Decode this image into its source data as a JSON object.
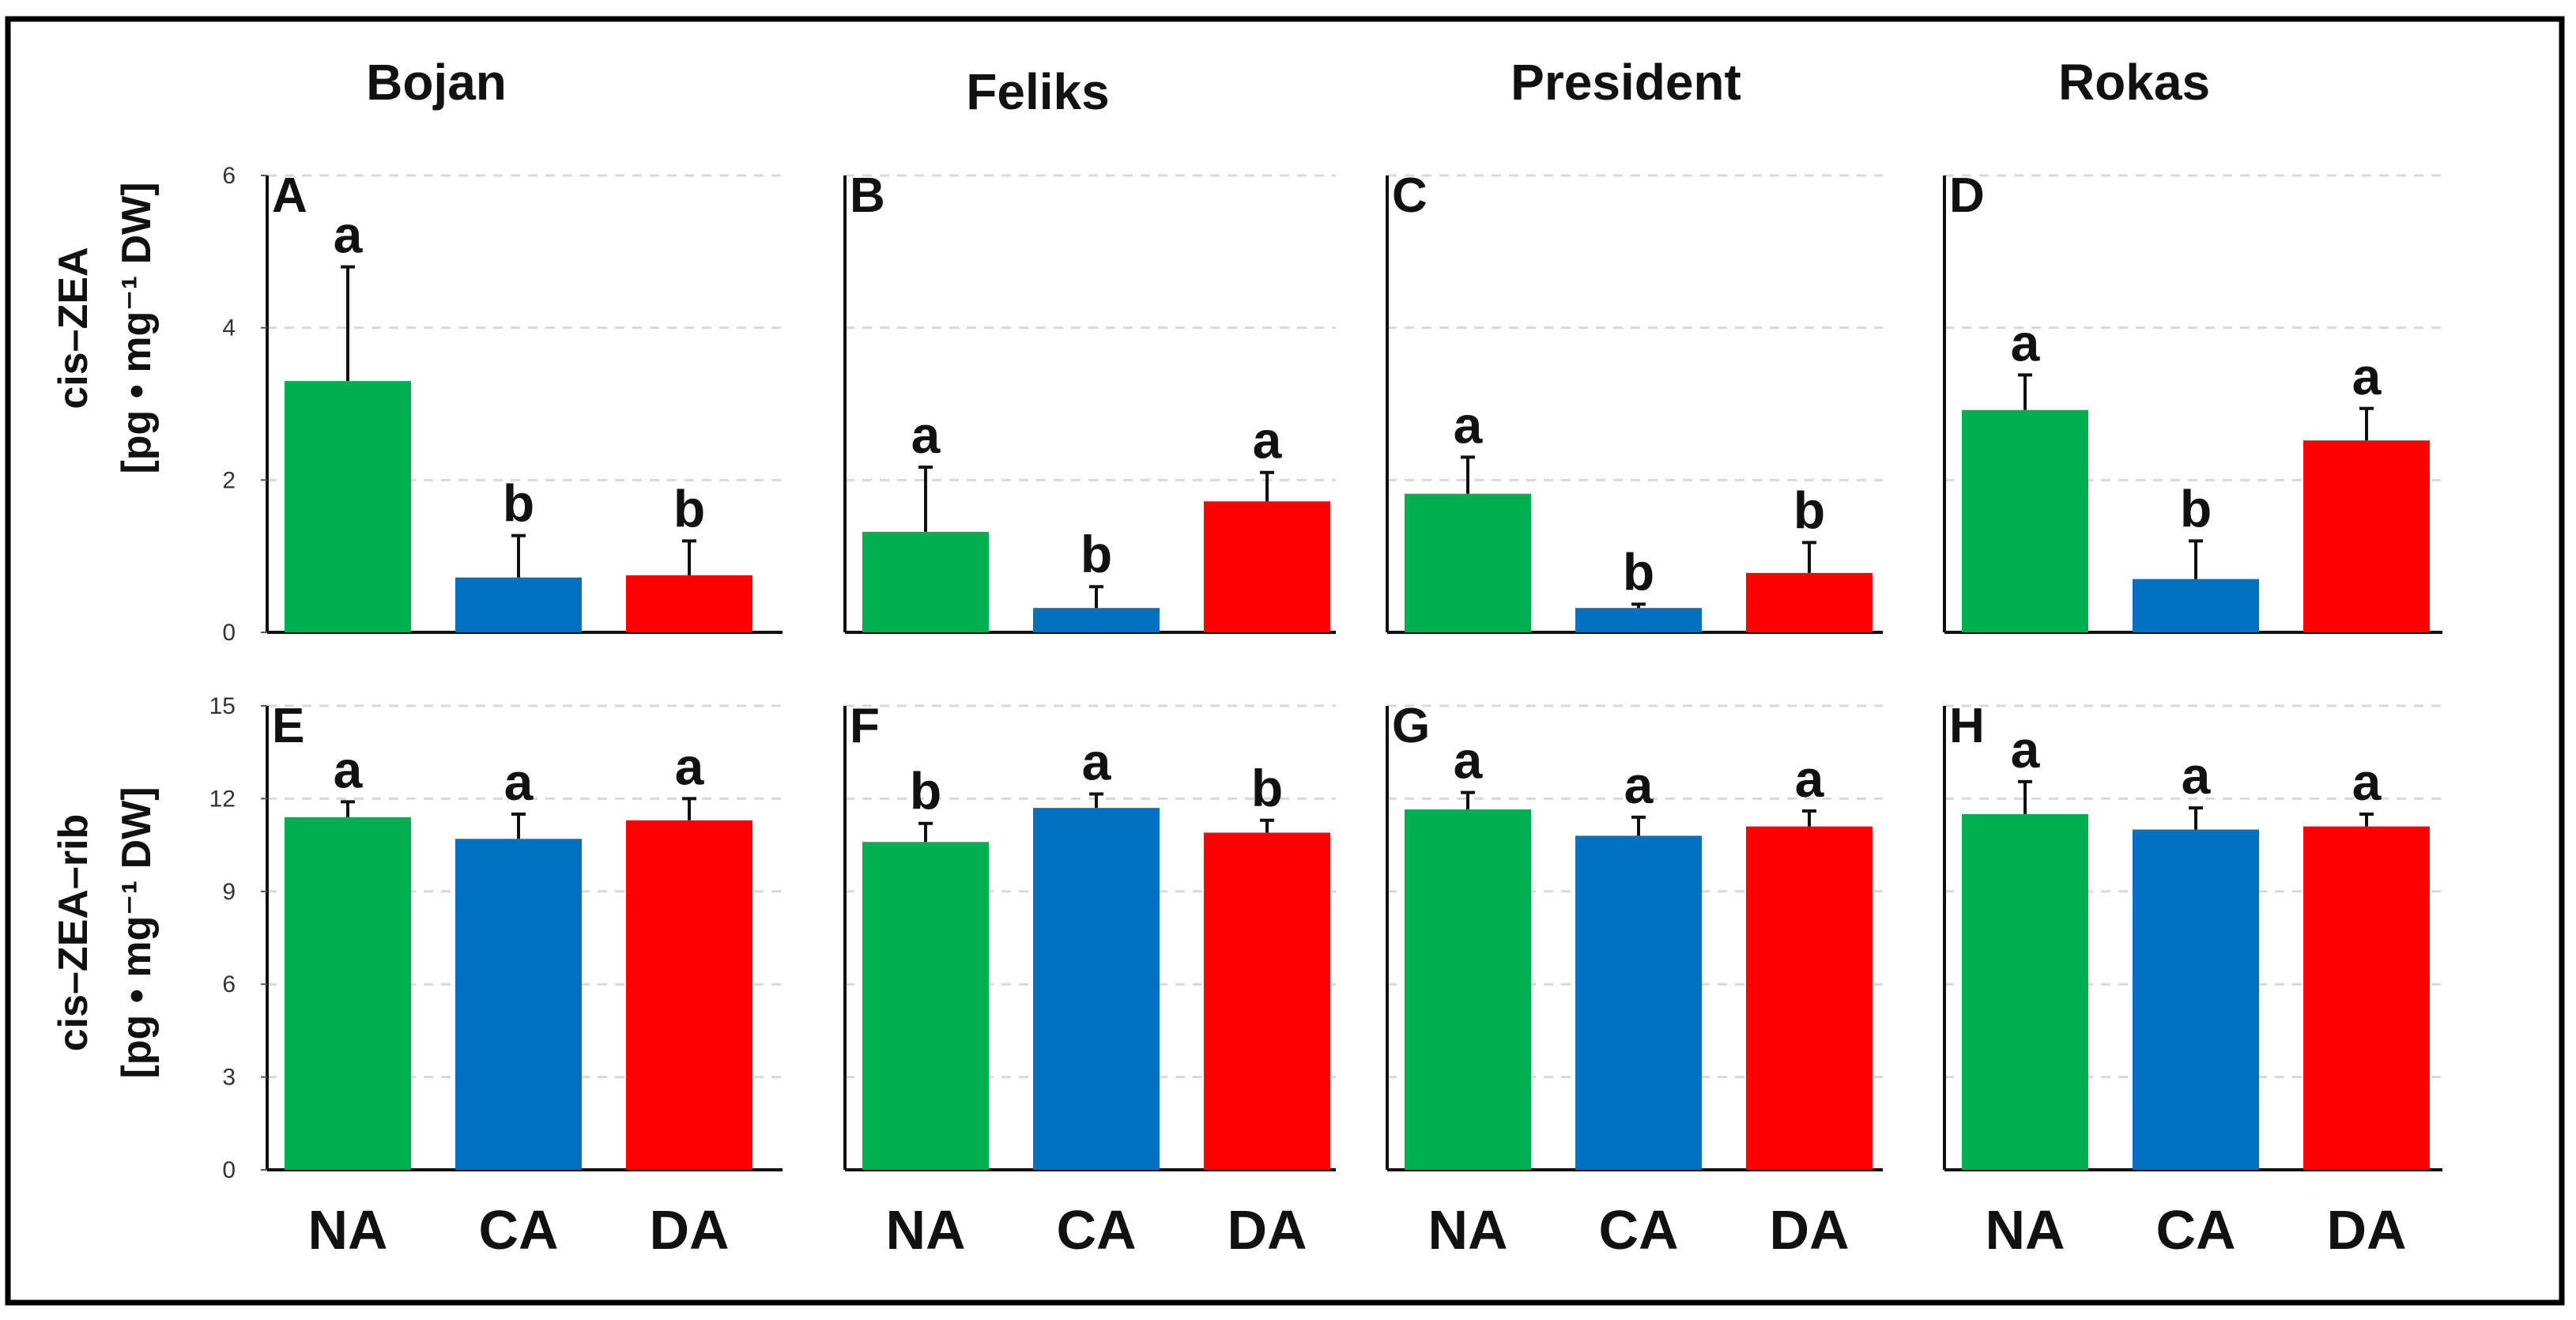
{
  "colors": {
    "NA": "#00b050",
    "CA": "#0070c0",
    "DA": "#ff0000",
    "frame": "#000000"
  },
  "cultivars": [
    "Bojan",
    "Feliks",
    "President",
    "Rokas"
  ],
  "categories": [
    "NA",
    "CA",
    "DA"
  ],
  "rows": [
    {
      "ylabel_line1": "cis–ZEA",
      "ylabel_line2": "[pg • mg⁻¹ DW]",
      "ylim": [
        0,
        6
      ],
      "ticks": [
        "0",
        "2",
        "4",
        "6"
      ],
      "tick_values": [
        0,
        2,
        4,
        6
      ]
    },
    {
      "ylabel_line1": "cis–ZEA–rib",
      "ylabel_line2": "[pg • mg⁻¹ DW]",
      "ylim": [
        0,
        15
      ],
      "ticks": [
        "0",
        "3",
        "6",
        "9",
        "12",
        "15"
      ],
      "tick_values": [
        0,
        3,
        6,
        9,
        12,
        15
      ]
    }
  ],
  "chart_data": [
    {
      "type": "bar",
      "panel": "A",
      "row": 0,
      "col": 0,
      "title": "Bojan",
      "ylabel": "cis–ZEA [pg • mg⁻¹ DW]",
      "ylim": [
        0,
        6
      ],
      "categories": [
        "NA",
        "CA",
        "DA"
      ],
      "values": [
        3.3,
        0.72,
        0.75
      ],
      "errors": [
        1.5,
        0.55,
        0.45
      ],
      "significance": [
        "a",
        "b",
        "b"
      ]
    },
    {
      "type": "bar",
      "panel": "B",
      "row": 0,
      "col": 1,
      "title": "Feliks",
      "ylabel": "cis–ZEA [pg • mg⁻¹ DW]",
      "ylim": [
        0,
        6
      ],
      "categories": [
        "NA",
        "CA",
        "DA"
      ],
      "values": [
        1.32,
        0.32,
        1.72
      ],
      "errors": [
        0.85,
        0.28,
        0.38
      ],
      "significance": [
        "a",
        "b",
        "a"
      ]
    },
    {
      "type": "bar",
      "panel": "C",
      "row": 0,
      "col": 2,
      "title": "President",
      "ylabel": "cis–ZEA [pg • mg⁻¹ DW]",
      "ylim": [
        0,
        6
      ],
      "categories": [
        "NA",
        "CA",
        "DA"
      ],
      "values": [
        1.82,
        0.32,
        0.78
      ],
      "errors": [
        0.48,
        0.05,
        0.4
      ],
      "significance": [
        "a",
        "b",
        "b"
      ]
    },
    {
      "type": "bar",
      "panel": "D",
      "row": 0,
      "col": 3,
      "title": "Rokas",
      "ylabel": "cis–ZEA [pg • mg⁻¹ DW]",
      "ylim": [
        0,
        6
      ],
      "categories": [
        "NA",
        "CA",
        "DA"
      ],
      "values": [
        2.92,
        0.7,
        2.52
      ],
      "errors": [
        0.46,
        0.5,
        0.42
      ],
      "significance": [
        "a",
        "b",
        "a"
      ]
    },
    {
      "type": "bar",
      "panel": "E",
      "row": 1,
      "col": 0,
      "title": "Bojan",
      "ylabel": "cis–ZEA–rib [pg • mg⁻¹ DW]",
      "ylim": [
        0,
        15
      ],
      "categories": [
        "NA",
        "CA",
        "DA"
      ],
      "values": [
        11.4,
        10.7,
        11.3
      ],
      "errors": [
        0.5,
        0.8,
        0.7
      ],
      "significance": [
        "a",
        "a",
        "a"
      ]
    },
    {
      "type": "bar",
      "panel": "F",
      "row": 1,
      "col": 1,
      "title": "Feliks",
      "ylabel": "cis–ZEA–rib [pg • mg⁻¹ DW]",
      "ylim": [
        0,
        15
      ],
      "categories": [
        "NA",
        "CA",
        "DA"
      ],
      "values": [
        10.6,
        11.7,
        10.9
      ],
      "errors": [
        0.6,
        0.45,
        0.4
      ],
      "significance": [
        "b",
        "a",
        "b"
      ]
    },
    {
      "type": "bar",
      "panel": "G",
      "row": 1,
      "col": 2,
      "title": "President",
      "ylabel": "cis–ZEA–rib [pg • mg⁻¹ DW]",
      "ylim": [
        0,
        15
      ],
      "categories": [
        "NA",
        "CA",
        "DA"
      ],
      "values": [
        11.65,
        10.8,
        11.1
      ],
      "errors": [
        0.55,
        0.6,
        0.5
      ],
      "significance": [
        "a",
        "a",
        "a"
      ]
    },
    {
      "type": "bar",
      "panel": "H",
      "row": 1,
      "col": 3,
      "title": "Rokas",
      "ylabel": "cis–ZEA–rib [pg • mg⁻¹ DW]",
      "ylim": [
        0,
        15
      ],
      "categories": [
        "NA",
        "CA",
        "DA"
      ],
      "values": [
        11.5,
        11.0,
        11.1
      ],
      "errors": [
        1.05,
        0.7,
        0.4
      ],
      "significance": [
        "a",
        "a",
        "a"
      ]
    }
  ]
}
